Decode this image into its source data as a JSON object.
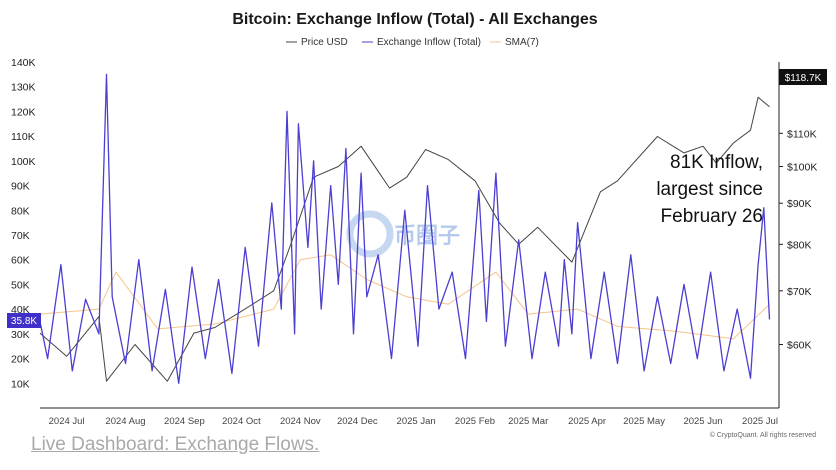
{
  "chart_data": {
    "type": "line",
    "title": "Bitcoin: Exchange Inflow (Total) - All Exchanges",
    "legend": {
      "placement": "top-center"
    },
    "series": [
      {
        "name": "Price USD",
        "axis": "right",
        "color": "#444444",
        "x": [
          "2024-07-01",
          "2024-07-15",
          "2024-08-01",
          "2024-08-05",
          "2024-08-20",
          "2024-09-06",
          "2024-09-20",
          "2024-10-01",
          "2024-10-15",
          "2024-11-01",
          "2024-11-10",
          "2024-11-22",
          "2024-12-05",
          "2024-12-17",
          "2025-01-01",
          "2025-01-10",
          "2025-01-20",
          "2025-02-01",
          "2025-02-15",
          "2025-02-28",
          "2025-03-10",
          "2025-03-20",
          "2025-04-07",
          "2025-04-22",
          "2025-05-01",
          "2025-05-22",
          "2025-06-05",
          "2025-06-15",
          "2025-06-22",
          "2025-07-01",
          "2025-07-10",
          "2025-07-14",
          "2025-07-20"
        ],
        "values": [
          62000,
          58000,
          65000,
          54000,
          60000,
          54000,
          62000,
          63000,
          66000,
          70000,
          80000,
          97000,
          100000,
          106000,
          94000,
          97000,
          105000,
          102000,
          96000,
          85000,
          80000,
          84000,
          76000,
          93000,
          96000,
          109000,
          104000,
          106000,
          101000,
          107000,
          111000,
          122000,
          118700
        ]
      },
      {
        "name": "Exchange Inflow (Total)",
        "axis": "left",
        "color": "#4b3fd1",
        "x": [
          "2024-07-01",
          "2024-07-05",
          "2024-07-12",
          "2024-07-18",
          "2024-07-25",
          "2024-08-01",
          "2024-08-05",
          "2024-08-08",
          "2024-08-15",
          "2024-08-22",
          "2024-08-29",
          "2024-09-05",
          "2024-09-12",
          "2024-09-19",
          "2024-09-26",
          "2024-10-03",
          "2024-10-10",
          "2024-10-17",
          "2024-10-24",
          "2024-10-31",
          "2024-11-05",
          "2024-11-08",
          "2024-11-12",
          "2024-11-14",
          "2024-11-19",
          "2024-11-22",
          "2024-11-26",
          "2024-12-01",
          "2024-12-05",
          "2024-12-09",
          "2024-12-13",
          "2024-12-17",
          "2024-12-20",
          "2024-12-26",
          "2025-01-02",
          "2025-01-09",
          "2025-01-16",
          "2025-01-21",
          "2025-01-27",
          "2025-02-03",
          "2025-02-10",
          "2025-02-17",
          "2025-02-21",
          "2025-02-26",
          "2025-03-03",
          "2025-03-10",
          "2025-03-17",
          "2025-03-24",
          "2025-03-31",
          "2025-04-03",
          "2025-04-07",
          "2025-04-10",
          "2025-04-17",
          "2025-04-24",
          "2025-05-01",
          "2025-05-08",
          "2025-05-15",
          "2025-05-22",
          "2025-05-29",
          "2025-06-05",
          "2025-06-12",
          "2025-06-19",
          "2025-06-26",
          "2025-07-03",
          "2025-07-10",
          "2025-07-14",
          "2025-07-17",
          "2025-07-20"
        ],
        "values": [
          35000,
          20000,
          58000,
          15000,
          44000,
          30000,
          135000,
          45000,
          18000,
          60000,
          15000,
          48000,
          10000,
          57000,
          20000,
          52000,
          14000,
          65000,
          25000,
          83000,
          40000,
          120000,
          30000,
          115000,
          65000,
          100000,
          40000,
          90000,
          50000,
          105000,
          30000,
          95000,
          45000,
          62000,
          20000,
          80000,
          25000,
          90000,
          40000,
          55000,
          20000,
          88000,
          35000,
          95000,
          25000,
          68000,
          20000,
          55000,
          25000,
          60000,
          30000,
          75000,
          20000,
          55000,
          18000,
          62000,
          15000,
          45000,
          18000,
          50000,
          20000,
          55000,
          15000,
          40000,
          12000,
          58000,
          81000,
          35800
        ]
      },
      {
        "name": "SMA(7)",
        "axis": "left",
        "color": "#f5c488",
        "x": [
          "2024-07-01",
          "2024-08-01",
          "2024-08-10",
          "2024-09-01",
          "2024-10-01",
          "2024-11-01",
          "2024-11-15",
          "2024-12-01",
          "2024-12-20",
          "2025-01-10",
          "2025-02-01",
          "2025-02-26",
          "2025-03-15",
          "2025-04-10",
          "2025-05-01",
          "2025-06-01",
          "2025-07-01",
          "2025-07-20"
        ],
        "values": [
          38000,
          40000,
          55000,
          32000,
          34000,
          40000,
          60000,
          62000,
          52000,
          45000,
          42000,
          55000,
          38000,
          40000,
          33000,
          31000,
          28000,
          42000
        ]
      }
    ],
    "y_left": {
      "ylim": [
        0,
        140000
      ],
      "ticks": [
        10000,
        20000,
        30000,
        40000,
        50000,
        60000,
        70000,
        80000,
        90000,
        100000,
        110000,
        120000,
        130000,
        140000
      ],
      "tick_labels": [
        "10K",
        "20K",
        "30K",
        "40K",
        "50K",
        "60K",
        "70K",
        "80K",
        "90K",
        "100K",
        "110K",
        "120K",
        "130K",
        "140K"
      ]
    },
    "y_right": {
      "scale": "log",
      "ylim": [
        50000,
        135000
      ],
      "ticks": [
        60000,
        70000,
        80000,
        90000,
        100000,
        110000
      ],
      "tick_labels": [
        "$60K",
        "$70K",
        "$80K",
        "$90K",
        "$100K",
        "$110K"
      ]
    },
    "x_axis": {
      "range": [
        "2024-07-01",
        "2025-07-25"
      ],
      "ticks": [
        "2024-07-15",
        "2024-08-15",
        "2024-09-15",
        "2024-10-15",
        "2024-11-15",
        "2024-12-15",
        "2025-01-15",
        "2025-02-15",
        "2025-03-15",
        "2025-04-15",
        "2025-05-15",
        "2025-06-15",
        "2025-07-15"
      ],
      "tick_labels": [
        "2024 Jul",
        "2024 Aug",
        "2024 Sep",
        "2024 Oct",
        "2024 Nov",
        "2024 Dec",
        "2025 Jan",
        "2025 Feb",
        "2025 Mar",
        "2025 Apr",
        "2025 May",
        "2025 Jun",
        "2025 Jul"
      ]
    },
    "current_value_labels": {
      "left": "35.8K",
      "right": "$118.7K"
    },
    "annotation": [
      "81K Inflow,",
      "largest since",
      "February 26"
    ],
    "grid": false
  },
  "watermark": {
    "text": "币圈子"
  },
  "copyright": "© CryptoQuant. All rights reserved",
  "footer_link": "Live Dashboard: Exchange Flows."
}
